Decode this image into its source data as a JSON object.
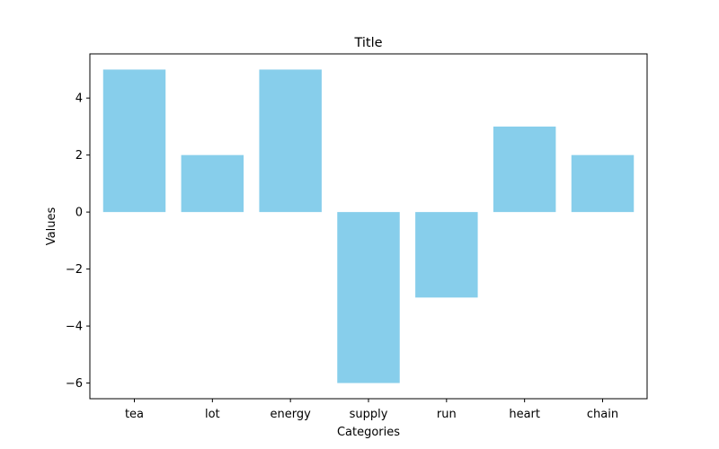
{
  "chart_data": {
    "type": "bar",
    "title": "Title",
    "xlabel": "Categories",
    "ylabel": "Values",
    "categories": [
      "tea",
      "lot",
      "energy",
      "supply",
      "run",
      "heart",
      "chain"
    ],
    "values": [
      5,
      2,
      5,
      -6,
      -3,
      3,
      2
    ],
    "ylim": [
      -6.55,
      5.55
    ],
    "yticks": [
      -6,
      -4,
      -2,
      0,
      2,
      4
    ],
    "bar_color": "#87CEEB",
    "grid": false
  }
}
